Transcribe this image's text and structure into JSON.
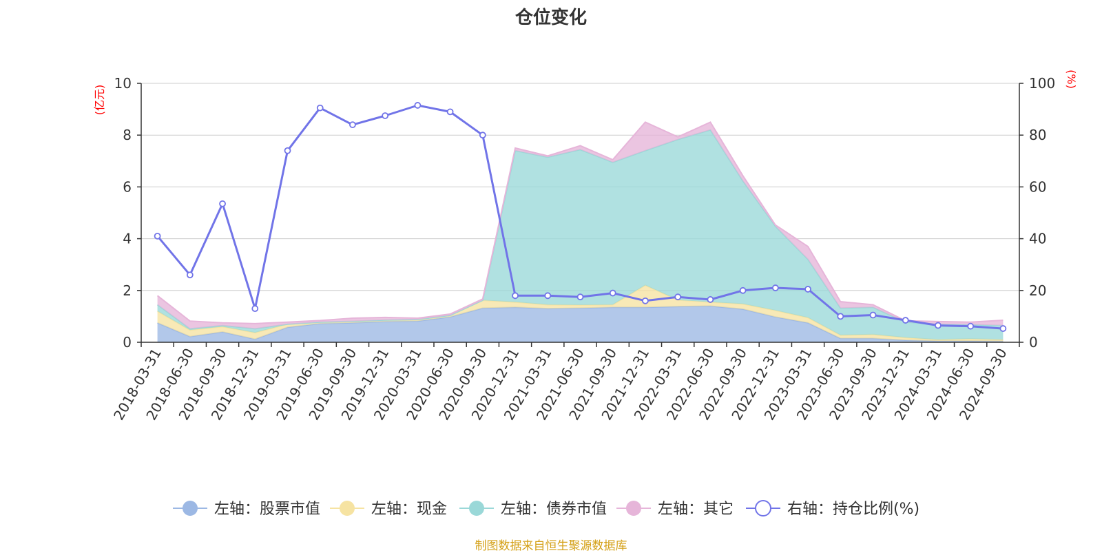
{
  "chart_data": {
    "type": "area",
    "title": "仓位变化",
    "left_axis": {
      "unit_label": "(亿元)",
      "min": 0,
      "max": 10,
      "ticks": [
        0,
        2,
        4,
        6,
        8,
        10
      ]
    },
    "right_axis": {
      "unit_label": "(%)",
      "min": 0,
      "max": 100,
      "ticks": [
        0,
        20,
        40,
        60,
        80,
        100
      ]
    },
    "x": [
      "2018-03-31",
      "2018-06-30",
      "2018-09-30",
      "2018-12-31",
      "2019-03-31",
      "2019-06-30",
      "2019-09-30",
      "2019-12-31",
      "2020-03-31",
      "2020-06-30",
      "2020-09-30",
      "2020-12-31",
      "2021-03-31",
      "2021-06-30",
      "2021-09-30",
      "2021-12-31",
      "2022-03-31",
      "2022-06-30",
      "2022-09-30",
      "2022-12-31",
      "2023-03-31",
      "2023-06-30",
      "2023-09-30",
      "2023-12-31",
      "2024-03-31",
      "2024-06-30",
      "2024-09-30"
    ],
    "series": [
      {
        "name": "左轴：股票市值",
        "axis": "left",
        "color": "#9cb8e4",
        "values": [
          0.75,
          0.22,
          0.4,
          0.12,
          0.58,
          0.72,
          0.75,
          0.8,
          0.82,
          0.98,
          1.32,
          1.35,
          1.3,
          1.32,
          1.35,
          1.35,
          1.38,
          1.4,
          1.28,
          0.98,
          0.75,
          0.15,
          0.15,
          0.08,
          0.05,
          0.05,
          0.04
        ]
      },
      {
        "name": "左轴：现金",
        "axis": "left",
        "color": "#f6e3a2",
        "values": [
          0.45,
          0.25,
          0.2,
          0.25,
          0.12,
          0.06,
          0.06,
          0.06,
          0.06,
          0.06,
          0.3,
          0.2,
          0.15,
          0.12,
          0.1,
          0.85,
          0.25,
          0.15,
          0.2,
          0.25,
          0.2,
          0.12,
          0.15,
          0.1,
          0.05,
          0.08,
          0.06
        ]
      },
      {
        "name": "左轴：债券市值",
        "axis": "left",
        "color": "#9ad8d8",
        "values": [
          0.25,
          0.05,
          0.05,
          0.15,
          0,
          0,
          0,
          0,
          0,
          0,
          0,
          5.85,
          5.7,
          6.0,
          5.5,
          5.2,
          6.2,
          6.65,
          4.75,
          3.25,
          2.25,
          1.05,
          1.05,
          0.6,
          0.6,
          0.55,
          0.55
        ]
      },
      {
        "name": "左轴：其它",
        "axis": "left",
        "color": "#e6b5d9",
        "values": [
          0.35,
          0.3,
          0.1,
          0.2,
          0.08,
          0.06,
          0.12,
          0.1,
          0.05,
          0.05,
          0.05,
          0.1,
          0.05,
          0.15,
          0.1,
          1.1,
          0.1,
          0.3,
          0.2,
          0.05,
          0.5,
          0.25,
          0.1,
          0.05,
          0.1,
          0.1,
          0.2
        ]
      },
      {
        "name": "右轴：持仓比例(%)",
        "axis": "right",
        "type": "line",
        "color": "#7174e8",
        "values": [
          41,
          26,
          53.5,
          13,
          74,
          90.5,
          84,
          87.5,
          91.5,
          89,
          80,
          18,
          18,
          17.5,
          19,
          16,
          17.5,
          16.5,
          20,
          21,
          20.5,
          10,
          10.5,
          8.5,
          6.5,
          6.2,
          5.3
        ]
      }
    ],
    "legend": {
      "position": "bottom"
    },
    "grid": true
  },
  "source_note": "制图数据来自恒生聚源数据库"
}
